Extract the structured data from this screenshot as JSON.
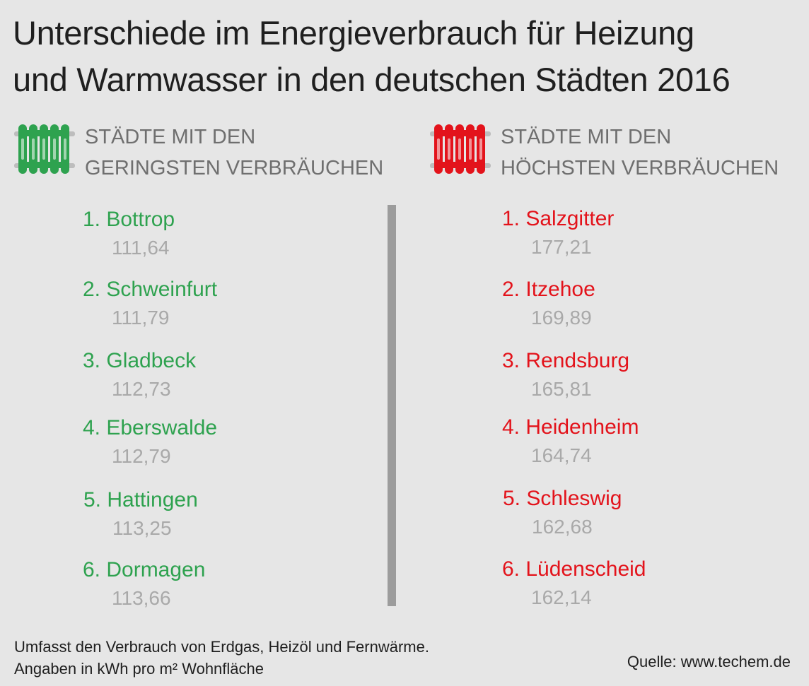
{
  "title": {
    "line1": "Unterschiede im Energieverbrauch für Heizung",
    "line2": "und Warmwasser in den deutschen Städten 2016"
  },
  "colors": {
    "low": "#2ea24f",
    "high": "#e3131b",
    "value": "#a9a9a9",
    "divider": "#9c9c9c",
    "background": "#e6e6e6"
  },
  "legend_low": {
    "icon": "radiator-icon",
    "line1": "STÄDTE MIT DEN",
    "line2": "GERINGSTEN VERBRÄUCHEN"
  },
  "legend_high": {
    "icon": "radiator-icon",
    "line1": "STÄDTE MIT DEN",
    "line2": "HÖCHSTEN VERBRÄUCHEN"
  },
  "lowest": [
    {
      "label": "1. Bottrop",
      "value": "111,64"
    },
    {
      "label": "2. Schweinfurt",
      "value": "111,79"
    },
    {
      "label": "3. Gladbeck",
      "value": "112,73"
    },
    {
      "label": "4. Eberswalde",
      "value": "112,79"
    },
    {
      "label": "5. Hattingen",
      "value": "113,25"
    },
    {
      "label": "6. Dormagen",
      "value": "113,66"
    }
  ],
  "highest": [
    {
      "label": "1. Salzgitter",
      "value": "177,21"
    },
    {
      "label": "2. Itzehoe",
      "value": "169,89"
    },
    {
      "label": "3. Rendsburg",
      "value": "165,81"
    },
    {
      "label": "4. Heidenheim",
      "value": "164,74"
    },
    {
      "label": "5. Schleswig",
      "value": "162,68"
    },
    {
      "label": "6. Lüdenscheid",
      "value": "162,14"
    }
  ],
  "footer": {
    "note_line1": "Umfasst den Verbrauch von Erdgas, Heizöl und Fernwärme.",
    "note_line2": "Angaben in kWh pro m² Wohnfläche",
    "source": "Quelle: www.techem.de"
  }
}
